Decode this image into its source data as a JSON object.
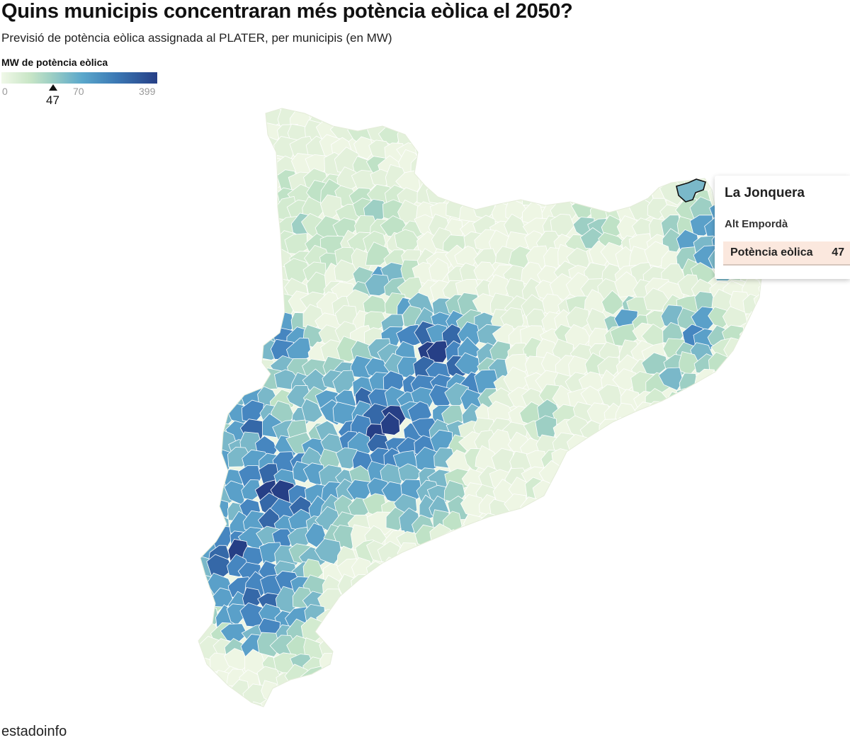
{
  "header": {
    "title": "Quins municipis concentraran més potència eòlica el 2050?",
    "subtitle": "Previsió de potència eòlica assignada al PLATER, per municipis (en MW)"
  },
  "legend": {
    "title": "MW de potència eòlica",
    "min": "0",
    "mid": "70",
    "max": "399",
    "marker_value": "47",
    "colors": [
      "#f0f8e8",
      "#c9e6c7",
      "#9dcfc4",
      "#5aa7cb",
      "#3b78b4",
      "#263f86"
    ]
  },
  "tooltip": {
    "municipality": "La Jonquera",
    "region": "Alt Empordà",
    "metric_label": "Potència eòlica",
    "metric_value": "47",
    "highlight_color": "#fbe8de"
  },
  "map": {
    "region": "Catalunya",
    "low_color": "#eef6e4",
    "high_color": "#263f86",
    "border_color": "#ffffff",
    "highlighted_municipality": "La Jonquera"
  },
  "footer": {
    "credit": "estadoinfo"
  }
}
